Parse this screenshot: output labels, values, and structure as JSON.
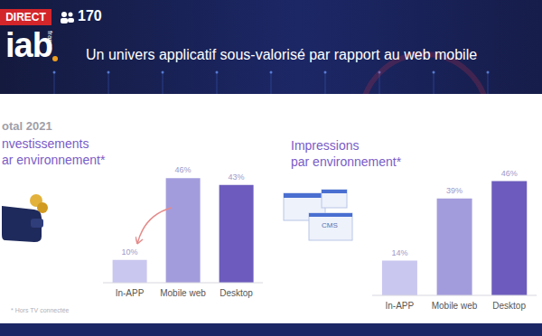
{
  "slide": {
    "live_badge": "DIRECT",
    "viewers": "170",
    "logo": "iab",
    "logo_sub": "france",
    "title": "Un univers applicatif sous-valorisé par rapport au web mobile",
    "period": "otal 2021",
    "footnote": "* Hors TV connectée",
    "icon_label": "CMS"
  },
  "chart_data": [
    {
      "type": "bar",
      "title": "nvestissements\nar environnement*",
      "categories": [
        "In-APP",
        "Mobile web",
        "Desktop"
      ],
      "values": [
        10,
        46,
        43
      ],
      "value_labels": [
        "10%",
        "46%",
        "43%"
      ],
      "colors": [
        "#c9c7ef",
        "#a39cdc",
        "#6d5cbd"
      ],
      "data_labels": true,
      "tick_labels": "x"
    },
    {
      "type": "bar",
      "title": "Impressions\npar environnement*",
      "categories": [
        "In-APP",
        "Mobile web",
        "Desktop"
      ],
      "values": [
        14,
        39,
        46
      ],
      "value_labels": [
        "14%",
        "39%",
        "46%"
      ],
      "colors": [
        "#c9c7ef",
        "#a39cdc",
        "#6d5cbd"
      ],
      "data_labels": true,
      "tick_labels": "x"
    }
  ]
}
